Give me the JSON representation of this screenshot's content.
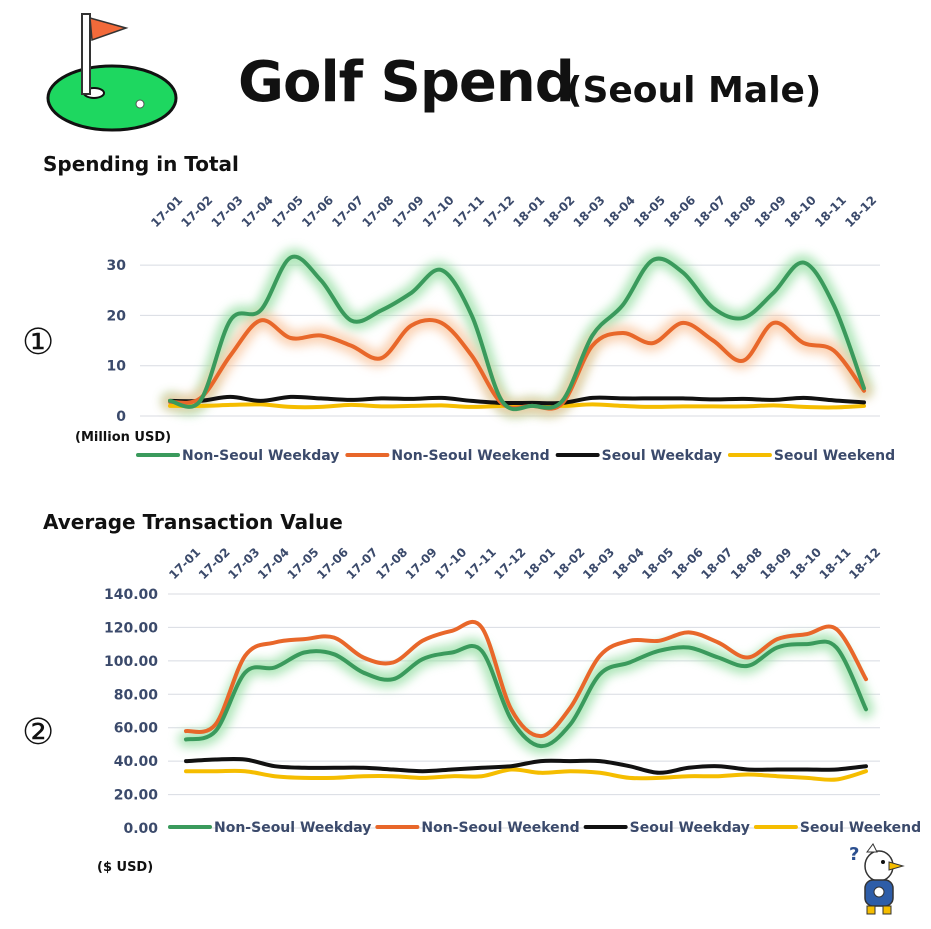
{
  "title": "Golf Spend",
  "subtitle": "(Seoul Male)",
  "sections": [
    {
      "marker": "①",
      "title": "Spending in Total",
      "unit": "(Million USD)"
    },
    {
      "marker": "②",
      "title": "Average Transaction Value",
      "unit": "($ USD)"
    }
  ],
  "icons": {
    "top_left": "golf-flag-icon",
    "bottom_right": "confused-mascot-icon"
  },
  "colors": {
    "non_seoul_weekday": "#3a9a5c",
    "non_seoul_weekend": "#e8672a",
    "seoul_weekday": "#111111",
    "seoul_weekend": "#f5bd00",
    "glow_green": "#9be0a8",
    "glow_orange": "#f9c7a2"
  },
  "chart_data": [
    {
      "type": "line",
      "title": "Spending in Total",
      "ylabel": "(Million USD)",
      "ylim": [
        0,
        33
      ],
      "yticks": [
        "0",
        "10",
        "20",
        "30"
      ],
      "ytick_values": [
        0,
        10,
        20,
        30
      ],
      "grid": true,
      "legend": "bottom",
      "categories": [
        "17-01",
        "17-02",
        "17-03",
        "17-04",
        "17-05",
        "17-06",
        "17-07",
        "17-08",
        "17-09",
        "17-10",
        "17-11",
        "17-12",
        "18-01",
        "18-02",
        "18-03",
        "18-04",
        "18-05",
        "18-06",
        "18-07",
        "18-08",
        "18-09",
        "18-10",
        "18-11",
        "18-12"
      ],
      "series": [
        {
          "name": "Non-Seoul Weekday",
          "color": "#3a9a5c",
          "glow": "#9be0a8",
          "values": [
            3,
            3,
            19,
            21,
            31.5,
            27,
            19,
            21,
            24.5,
            29,
            20,
            3,
            2,
            3,
            16,
            22,
            31,
            28.5,
            21.5,
            19.5,
            24.5,
            30.5,
            22,
            5.5
          ]
        },
        {
          "name": "Non-Seoul Weekend",
          "color": "#e8672a",
          "glow": "#f9c7a2",
          "values": [
            2.8,
            3.5,
            12,
            19,
            15.5,
            16,
            14,
            11.5,
            18,
            18.5,
            12,
            2.5,
            2,
            2.5,
            14,
            16.5,
            14.5,
            18.5,
            15,
            11,
            18.5,
            14.5,
            13,
            5
          ]
        },
        {
          "name": "Seoul Weekday",
          "color": "#111111",
          "values": [
            3,
            3,
            3.8,
            3,
            3.8,
            3.5,
            3.2,
            3.5,
            3.4,
            3.6,
            3,
            2.6,
            2.6,
            2.6,
            3.6,
            3.5,
            3.5,
            3.5,
            3.3,
            3.4,
            3.2,
            3.6,
            3.1,
            2.7
          ]
        },
        {
          "name": "Seoul Weekend",
          "color": "#f5bd00",
          "values": [
            2,
            2,
            2.2,
            2.3,
            1.8,
            1.8,
            2.2,
            1.9,
            2,
            2.1,
            1.8,
            2,
            2.2,
            2,
            2.3,
            2,
            1.8,
            1.9,
            1.9,
            1.9,
            2.1,
            1.8,
            1.7,
            2
          ]
        }
      ]
    },
    {
      "type": "line",
      "title": "Average Transaction Value",
      "ylabel": "($ USD)",
      "ylim": [
        0,
        140
      ],
      "yticks": [
        "0.00",
        "20.00",
        "40.00",
        "60.00",
        "80.00",
        "100.00",
        "120.00",
        "140.00"
      ],
      "ytick_values": [
        0,
        20,
        40,
        60,
        80,
        100,
        120,
        140
      ],
      "grid": true,
      "legend": "bottom",
      "categories": [
        "17-01",
        "17-02",
        "17-03",
        "17-04",
        "17-05",
        "17-06",
        "17-07",
        "17-08",
        "17-09",
        "17-10",
        "17-11",
        "17-12",
        "18-01",
        "18-02",
        "18-03",
        "18-04",
        "18-05",
        "18-06",
        "18-07",
        "18-08",
        "18-09",
        "18-10",
        "18-11",
        "18-12"
      ],
      "series": [
        {
          "name": "Non-Seoul Weekday",
          "color": "#3a9a5c",
          "glow": "#9be0a8",
          "values": [
            53,
            58,
            93,
            96,
            105,
            104,
            93,
            89,
            101,
            105,
            106,
            65,
            49,
            62,
            92,
            99,
            106,
            108,
            102,
            97,
            108,
            110,
            108,
            71
          ]
        },
        {
          "name": "Non-Seoul Weekend",
          "color": "#e8672a",
          "values": [
            58,
            62,
            103,
            111,
            113,
            114,
            102,
            99,
            112,
            118,
            120,
            71,
            55,
            72,
            103,
            112,
            112,
            117,
            111,
            102,
            113,
            116,
            119,
            89
          ]
        },
        {
          "name": "Seoul Weekday",
          "color": "#111111",
          "values": [
            40,
            41,
            41,
            37,
            36,
            36,
            36,
            35,
            34,
            35,
            36,
            37,
            40,
            40,
            40,
            37,
            33,
            36,
            37,
            35,
            35,
            35,
            35,
            37
          ]
        },
        {
          "name": "Seoul Weekend",
          "color": "#f5bd00",
          "values": [
            34,
            34,
            34,
            31,
            30,
            30,
            31,
            31,
            30,
            31,
            31,
            35,
            33,
            34,
            33,
            30,
            30,
            31,
            31,
            32,
            31,
            30,
            29,
            34
          ]
        }
      ]
    }
  ]
}
